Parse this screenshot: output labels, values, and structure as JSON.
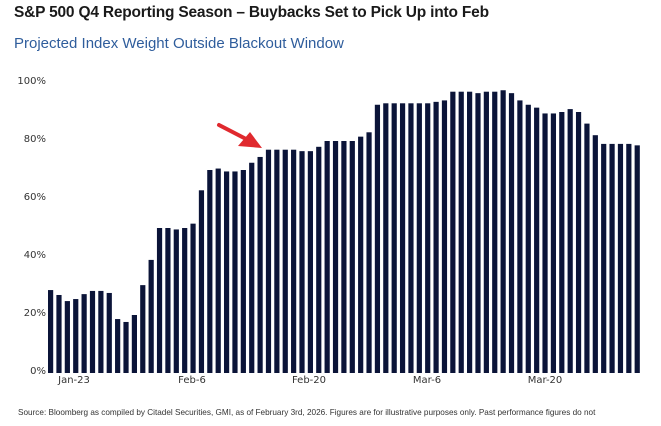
{
  "header": {
    "title": "S&P 500 Q4 Reporting Season – Buybacks Set to Pick Up into Feb",
    "subtitle": "Projected Index Weight Outside Blackout Window"
  },
  "colors": {
    "bar": "#0b1438",
    "arrow": "#e0292e",
    "subtitle": "#2f5d9c"
  },
  "axis": {
    "y_ticks": [
      "100%",
      "80%",
      "60%",
      "40%",
      "20%",
      "0%"
    ],
    "x_ticks": [
      "Jan-23",
      "Feb-6",
      "Feb-20",
      "Mar-6",
      "Mar-20"
    ]
  },
  "footer": {
    "source": "Source: Bloomberg as compiled by Citadel Securities, GMI, as of February 3rd, 2026. Figures are for illustrative purposes only. Past performance figures do not"
  },
  "chart_data": {
    "type": "bar",
    "title": "S&P 500 Q4 Reporting Season – Buybacks Set to Pick Up into Feb",
    "subtitle": "Projected Index Weight Outside Blackout Window",
    "xlabel": "",
    "ylabel": "",
    "ylim": [
      0,
      100
    ],
    "y_format": "percent",
    "x_tick_labels": [
      "Jan-23",
      "Feb-6",
      "Feb-20",
      "Mar-6",
      "Mar-20"
    ],
    "x_tick_bar_index": [
      2,
      17,
      31,
      45,
      59
    ],
    "grid": false,
    "legend": null,
    "annotation": {
      "type": "arrow",
      "color": "#e0292e",
      "points_to_bar_index": 25
    },
    "values": [
      28.6,
      26.9,
      24.8,
      25.5,
      27.2,
      28.3,
      28.3,
      27.6,
      18.6,
      17.6,
      20.0,
      30.3,
      39.0,
      50.0,
      50.0,
      49.5,
      50.0,
      51.5,
      63.0,
      70.0,
      70.5,
      69.5,
      69.5,
      70.0,
      72.5,
      74.5,
      77.0,
      77.0,
      77.0,
      77.0,
      76.5,
      76.5,
      78.0,
      80.0,
      80.0,
      80.0,
      80.0,
      81.5,
      83.0,
      92.5,
      93.0,
      93.0,
      93.0,
      93.0,
      93.0,
      93.0,
      93.5,
      94.0,
      97.0,
      97.0,
      97.0,
      96.5,
      97.0,
      97.0,
      97.5,
      96.5,
      94.0,
      92.5,
      91.5,
      89.5,
      89.5,
      90.0,
      91.0,
      90.0,
      86.0,
      82.0,
      79.0,
      79.0,
      79.0,
      79.0,
      78.5
    ]
  }
}
